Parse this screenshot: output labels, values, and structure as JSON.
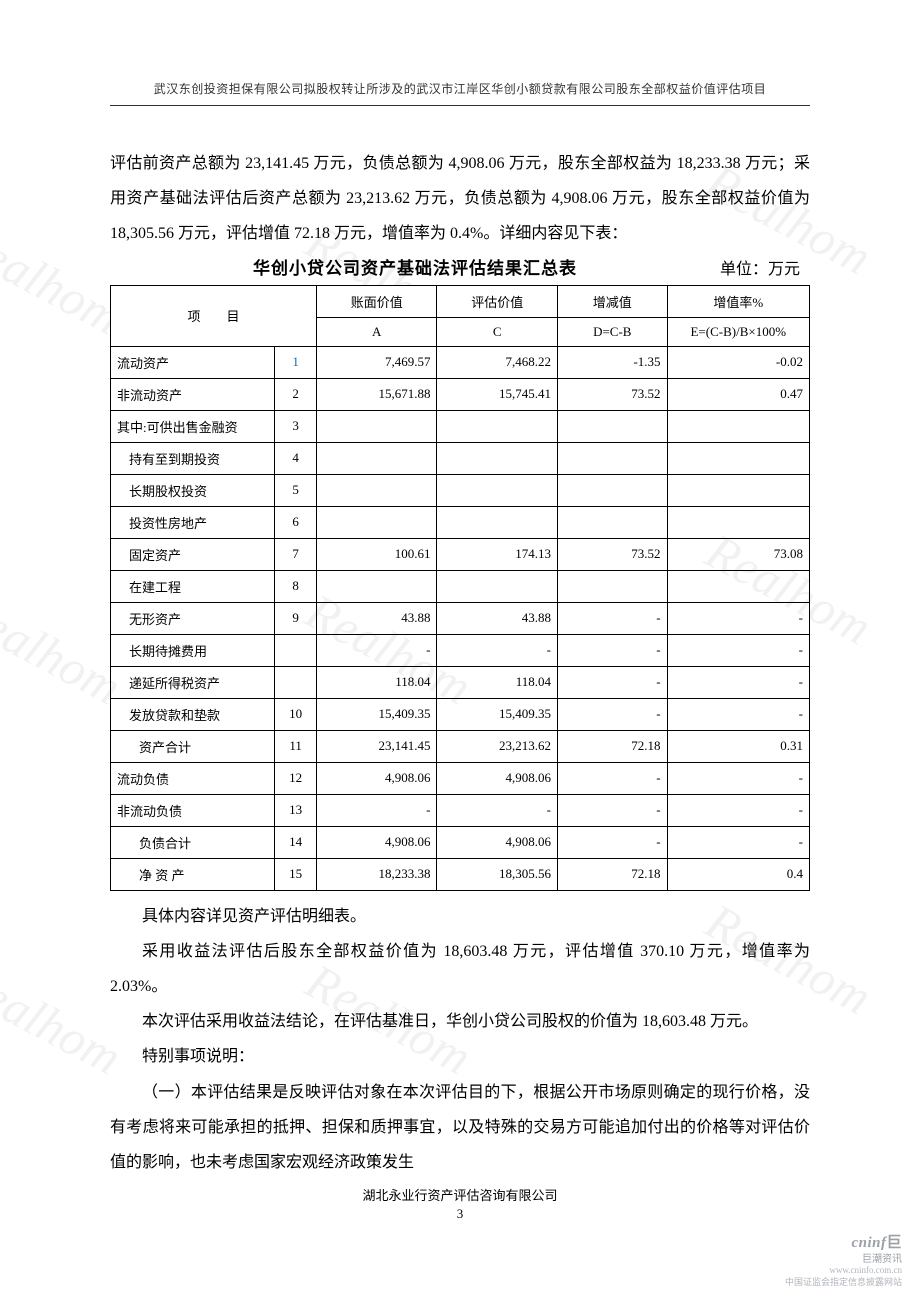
{
  "header": "武汉东创投资担保有限公司拟股权转让所涉及的武汉市江岸区华创小额贷款有限公司股东全部权益价值评估项目",
  "paragraphs": {
    "p1": "评估前资产总额为 23,141.45 万元，负债总额为 4,908.06 万元，股东全部权益为 18,233.38 万元；采用资产基础法评估后资产总额为 23,213.62 万元，负债总额为 4,908.06 万元，股东全部权益价值为 18,305.56 万元，评估增值 72.18 万元，增值率为 0.4%。详细内容见下表："
  },
  "table": {
    "title": "华创小贷公司资产基础法评估结果汇总表",
    "unit": "单位：万元",
    "header": {
      "item": "项　　目",
      "a": "账面价值",
      "c": "评估价值",
      "d": "增减值",
      "e": "增值率%",
      "sub_a": "A",
      "sub_c": "C",
      "sub_d": "D=C-B",
      "sub_e": "E=(C-B)/B×100%"
    },
    "rows": [
      {
        "item": "流动资产",
        "idx": "1",
        "idx_blue": true,
        "a": "7,469.57",
        "c": "7,468.22",
        "d": "-1.35",
        "e": "-0.02",
        "indent": 0
      },
      {
        "item": "非流动资产",
        "idx": "2",
        "a": "15,671.88",
        "c": "15,745.41",
        "d": "73.52",
        "e": "0.47",
        "indent": 0
      },
      {
        "item": "其中:可供出售金融资",
        "idx": "3",
        "a": "",
        "c": "",
        "d": "",
        "e": "",
        "indent": 0
      },
      {
        "item": "持有至到期投资",
        "idx": "4",
        "a": "",
        "c": "",
        "d": "",
        "e": "",
        "indent": 1
      },
      {
        "item": "长期股权投资",
        "idx": "5",
        "a": "",
        "c": "",
        "d": "",
        "e": "",
        "indent": 1
      },
      {
        "item": "投资性房地产",
        "idx": "6",
        "a": "",
        "c": "",
        "d": "",
        "e": "",
        "indent": 1
      },
      {
        "item": "固定资产",
        "idx": "7",
        "a": "100.61",
        "c": "174.13",
        "d": "73.52",
        "e": "73.08",
        "indent": 1
      },
      {
        "item": "在建工程",
        "idx": "8",
        "a": "",
        "c": "",
        "d": "",
        "e": "",
        "indent": 1
      },
      {
        "item": "无形资产",
        "idx": "9",
        "a": "43.88",
        "c": "43.88",
        "d": "-",
        "e": "-",
        "indent": 1
      },
      {
        "item": "长期待摊费用",
        "idx": "",
        "a": "-",
        "c": "-",
        "d": "-",
        "e": "-",
        "indent": 1
      },
      {
        "item": "递延所得税资产",
        "idx": "",
        "a": "118.04",
        "c": "118.04",
        "d": "-",
        "e": "-",
        "indent": 1
      },
      {
        "item": "发放贷款和垫款",
        "idx": "10",
        "a": "15,409.35",
        "c": "15,409.35",
        "d": "-",
        "e": "-",
        "indent": 1
      },
      {
        "item": "资产合计",
        "idx": "11",
        "a": "23,141.45",
        "c": "23,213.62",
        "d": "72.18",
        "e": "0.31",
        "indent": 2
      },
      {
        "item": "流动负债",
        "idx": "12",
        "a": "4,908.06",
        "c": "4,908.06",
        "d": "-",
        "e": "-",
        "indent": 0
      },
      {
        "item": "非流动负债",
        "idx": "13",
        "a": "-",
        "c": "-",
        "d": "-",
        "e": "-",
        "indent": 0
      },
      {
        "item": "负债合计",
        "idx": "14",
        "a": "4,908.06",
        "c": "4,908.06",
        "d": "-",
        "e": "-",
        "indent": 2
      },
      {
        "item": "净 资 产",
        "idx": "15",
        "a": "18,233.38",
        "c": "18,305.56",
        "d": "72.18",
        "e": "0.4",
        "indent": 2
      }
    ]
  },
  "after_table": {
    "p2": "具体内容详见资产评估明细表。",
    "p3": "采用收益法评估后股东全部权益价值为 18,603.48 万元，评估增值 370.10 万元，增值率为 2.03%。",
    "p4": "本次评估采用收益法结论，在评估基准日，华创小贷公司股权的价值为 18,603.48 万元。",
    "p5": "特别事项说明：",
    "p6": "（一）本评估结果是反映评估对象在本次评估目的下，根据公开市场原则确定的现行价格，没有考虑将来可能承担的抵押、担保和质押事宜，以及特殊的交易方可能追加付出的价格等对评估价值的影响，也未考虑国家宏观经济政策发生"
  },
  "footer": {
    "org": "湖北永业行资产评估咨询有限公司",
    "page": "3"
  },
  "logo": {
    "main": "cninf",
    "sub": "巨潮资讯",
    "url": "www.cninfo.com.cn",
    "tagline": "中国证监会指定信息披露网站"
  },
  "watermark": "Realhom",
  "style": {
    "text_color": "#000000",
    "header_color": "#333333",
    "border_color": "#000000",
    "idx_blue": "#0070c0",
    "wm_color": "rgba(120,120,120,0.10)",
    "logo_color": "#9aa0a6",
    "body_font_size": 16,
    "table_font_size": 13,
    "line_height": 2.2
  }
}
